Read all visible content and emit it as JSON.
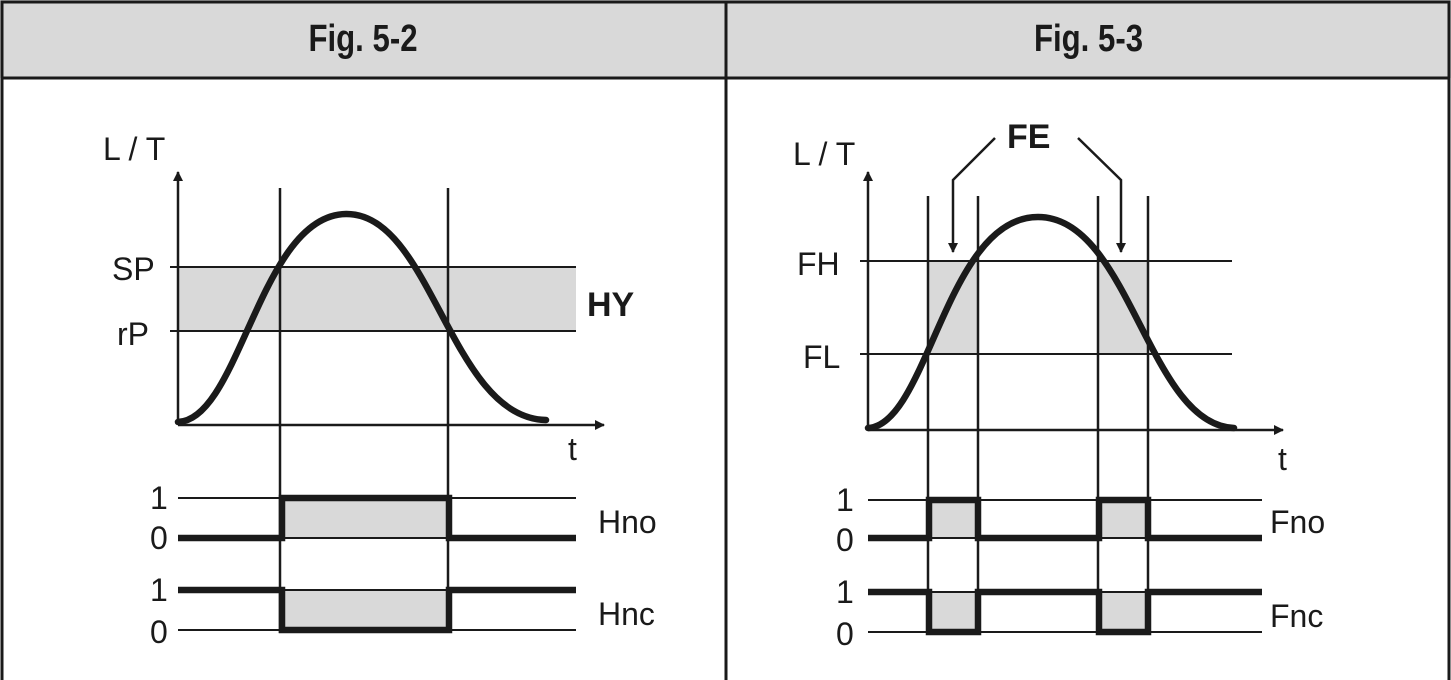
{
  "figures": [
    {
      "title": "Fig. 5-2",
      "y_axis_label": "L / T",
      "x_axis_label": "t",
      "levels": [
        "SP",
        "rP"
      ],
      "band_label": "HY",
      "outputs": [
        {
          "name": "Hno",
          "high": "1",
          "low": "0"
        },
        {
          "name": "Hnc",
          "high": "1",
          "low": "0"
        }
      ]
    },
    {
      "title": "Fig. 5-3",
      "y_axis_label": "L / T",
      "x_axis_label": "t",
      "levels": [
        "FH",
        "FL"
      ],
      "band_label": "FE",
      "outputs": [
        {
          "name": "Fno",
          "high": "1",
          "low": "0"
        },
        {
          "name": "Fnc",
          "high": "1",
          "low": "0"
        }
      ]
    }
  ],
  "colors": {
    "line": "#1a1a1a",
    "band": "#d9d9d9",
    "header": "#d9d9d9"
  }
}
